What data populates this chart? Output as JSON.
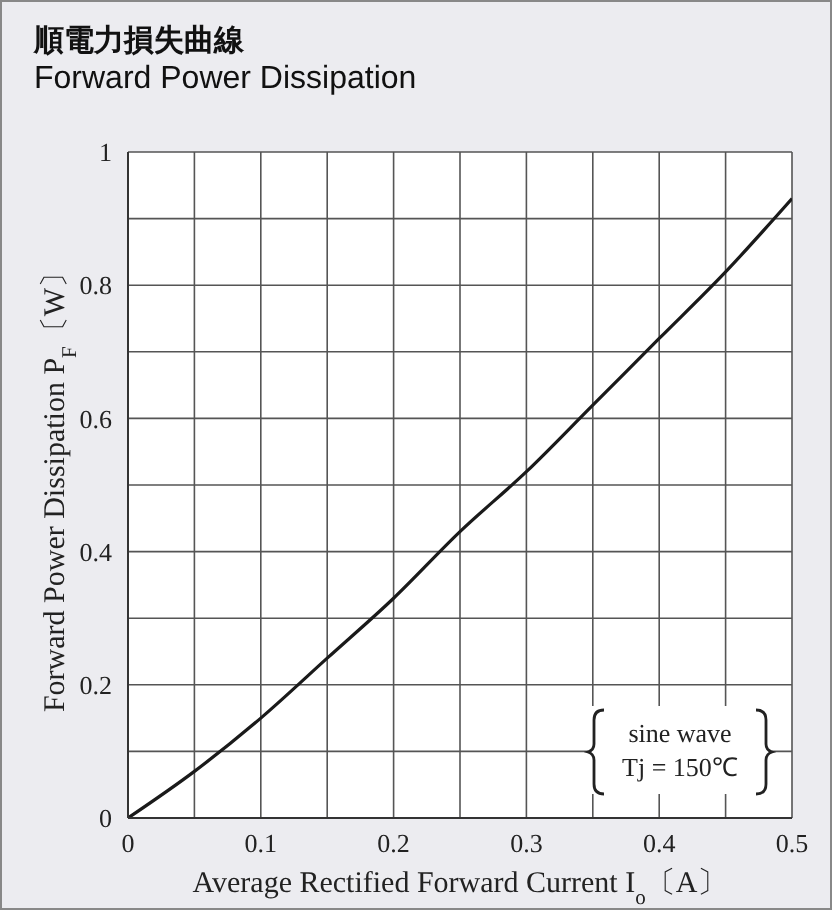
{
  "chart_data": {
    "type": "line",
    "title": "順電力損失曲線",
    "subtitle": "Forward Power Dissipation",
    "xlabel": "Average Rectified Forward Current I$_{o}$〔A〕",
    "ylabel": "Forward Power Dissipation P$_{F}$〔W〕",
    "annotations": [
      "sine wave",
      "Tj = 150℃"
    ],
    "x": [
      0,
      0.05,
      0.1,
      0.15,
      0.2,
      0.25,
      0.3,
      0.35,
      0.4,
      0.45,
      0.5
    ],
    "series": [
      {
        "color": "#1a1a1a",
        "values": [
          0,
          0.07,
          0.15,
          0.24,
          0.33,
          0.43,
          0.52,
          0.62,
          0.72,
          0.82,
          0.93
        ]
      }
    ],
    "xlim": [
      0,
      0.5
    ],
    "ylim": [
      0,
      1
    ],
    "xticks": [
      0,
      {
        "value": 0.05,
        "label": null
      },
      0.1,
      {
        "value": 0.15,
        "label": null
      },
      0.2,
      {
        "value": 0.25,
        "label": null
      },
      0.3,
      {
        "value": 0.35,
        "label": null
      },
      0.4,
      {
        "value": 0.45,
        "label": null
      },
      0.5
    ],
    "yticks": [
      0,
      {
        "value": 0.1,
        "label": null
      },
      0.2,
      {
        "value": 0.3,
        "label": null
      },
      0.4,
      {
        "value": 0.5,
        "label": null
      },
      0.6,
      {
        "value": 0.7,
        "label": null
      },
      0.8,
      {
        "value": 0.9,
        "label": null
      },
      1
    ],
    "grid": true,
    "marker": "none",
    "line_style": "solid"
  }
}
